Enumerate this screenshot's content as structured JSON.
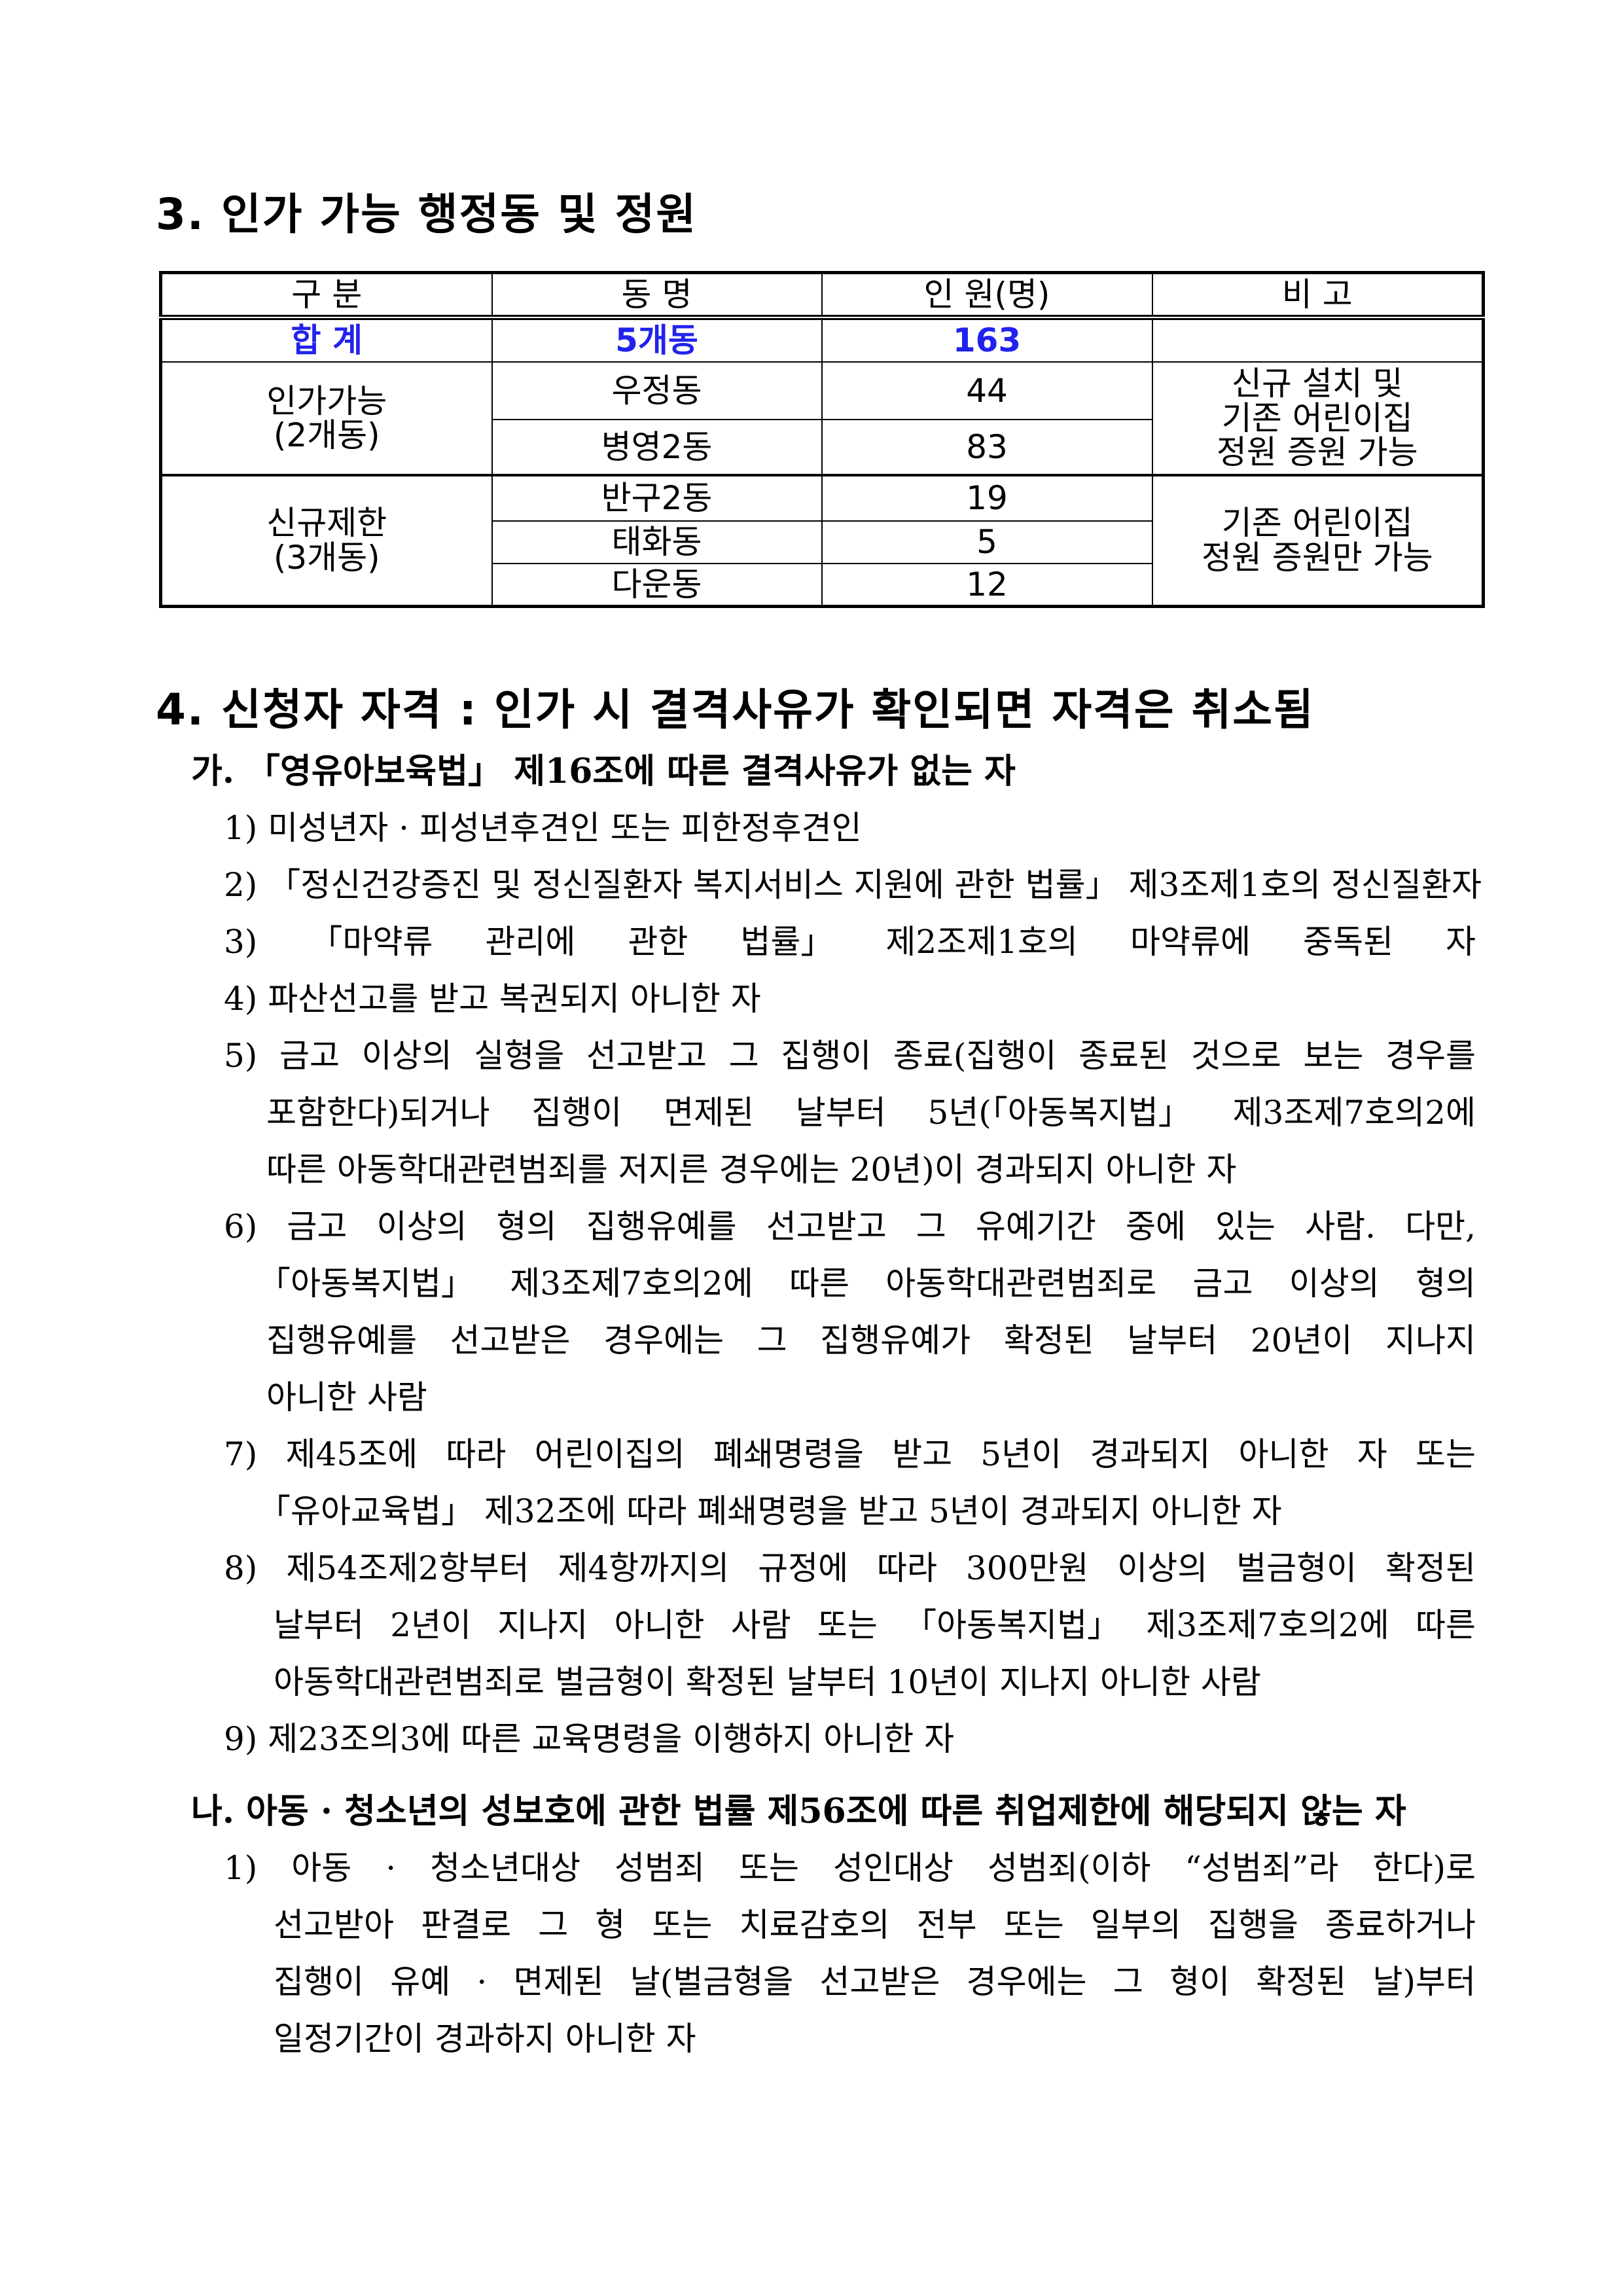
{
  "section3": {
    "title": "3. 인가 가능 행정동 및 정원",
    "headers": [
      "구 분",
      "동 명",
      "인 원(명)",
      "비 고"
    ],
    "total": {
      "label": "합 계",
      "dong": "5개동",
      "count": "163"
    },
    "groups": [
      {
        "label": "인가가능",
        "sub": "(2개동)",
        "rows": [
          {
            "dong": "우정동",
            "count": "44"
          },
          {
            "dong": "병영2동",
            "count": "83"
          }
        ],
        "note": [
          "신규 설치 및",
          "기존 어린이집",
          "정원 증원 가능"
        ]
      },
      {
        "label": "신규제한",
        "sub": "(3개동)",
        "rows": [
          {
            "dong": "반구2동",
            "count": "19"
          },
          {
            "dong": "태화동",
            "count": "5"
          },
          {
            "dong": "다운동",
            "count": "12"
          }
        ],
        "note": [
          "기존 어린이집",
          "정원 증원만 가능"
        ]
      }
    ]
  },
  "section4": {
    "title": "4. 신청자 자격 : 인가 시 결격사유가 확인되면 자격은 취소됨",
    "ga": "가. 「영유아보육법」 제16조에 따른 결격사유가 없는 자",
    "ga_lines": [
      "1) 미성년자 · 피성년후견인 또는 피한정후견인",
      "2) 「정신건강증진 및 정신질환자 복지서비스 지원에 관한 법률」 제3조제1호의 정신질환자",
      "3) 「마약류 관리에 관한 법률」 제2조제1호의 마약류에 중독된 자",
      "4) 파산선고를 받고 복권되지 아니한 자",
      "5) 금고 이상의 실형을 선고받고 그 집행이 종료(집행이 종료된 것으로 보는 경우를",
      "포함한다)되거나 집행이 면제된 날부터 5년(「아동복지법」 제3조제7호의2에",
      "따른 아동학대관련범죄를 저지른 경우에는 20년)이 경과되지 아니한 자",
      "6) 금고 이상의 형의 집행유예를 선고받고 그 유예기간 중에 있는 사람. 다만,",
      "「아동복지법」 제3조제7호의2에 따른 아동학대관련범죄로 금고 이상의 형의",
      "집행유예를 선고받은 경우에는 그 집행유예가 확정된 날부터 20년이 지나지",
      "아니한 사람",
      "7) 제45조에 따라 어린이집의 폐쇄명령을 받고 5년이 경과되지 아니한 자 또는",
      "「유아교육법」 제32조에 따라 폐쇄명령을 받고 5년이 경과되지 아니한 자",
      "8) 제54조제2항부터 제4항까지의 규정에 따라 300만원 이상의 벌금형이 확정된",
      "날부터 2년이 지나지 아니한 사람 또는 「아동복지법」 제3조제7호의2에 따른",
      "아동학대관련범죄로 벌금형이 확정된 날부터 10년이 지나지 아니한 사람",
      "9) 제23조의3에 따른 교육명령을 이행하지 아니한 자"
    ],
    "na": "나. 아동 · 청소년의 성보호에 관한 법률 제56조에 따른 취업제한에 해당되지 않는 자",
    "na_lines": [
      "1) 아동 · 청소년대상 성범죄 또는 성인대상 성범죄(이하 “성범죄”라 한다)로",
      "선고받아 판결로 그 형 또는 치료감호의 전부 또는 일부의 집행을 종료하거나",
      "집행이 유예 · 면제된 날(벌금형을 선고받은 경우에는 그 형이 확정된 날)부터",
      "일정기간이 경과하지 아니한 자"
    ]
  },
  "colors": {
    "total_row": "#2222ee"
  }
}
